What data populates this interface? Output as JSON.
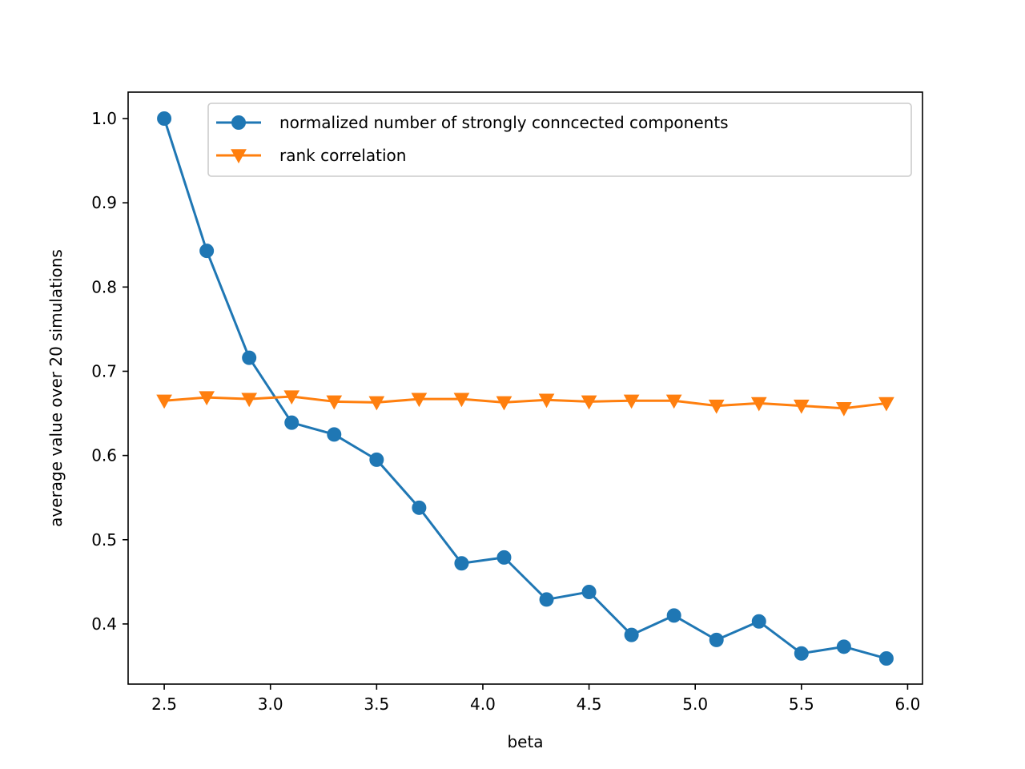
{
  "chart_data": {
    "type": "line",
    "title": "",
    "xlabel": "beta",
    "ylabel": "average value over 20 simulations",
    "xlim": [
      2.33,
      6.07
    ],
    "ylim": [
      0.3286,
      1.0314
    ],
    "x_ticks": [
      "2.5",
      "3.0",
      "3.5",
      "4.0",
      "4.5",
      "5.0",
      "5.5",
      "6.0"
    ],
    "y_ticks": [
      "0.4",
      "0.5",
      "0.6",
      "0.7",
      "0.8",
      "0.9",
      "1.0"
    ],
    "grid": false,
    "legend_position": "upper right",
    "x": [
      2.5,
      2.7,
      2.9,
      3.1,
      3.3,
      3.5,
      3.7,
      3.9,
      4.1,
      4.3,
      4.5,
      4.7,
      4.9,
      5.1,
      5.3,
      5.5,
      5.7,
      5.9
    ],
    "series": [
      {
        "name": "normalized number of strongly conncected components",
        "color": "#1f77b4",
        "marker": "circle",
        "values": [
          1.0,
          0.843,
          0.716,
          0.639,
          0.625,
          0.595,
          0.538,
          0.472,
          0.479,
          0.429,
          0.438,
          0.387,
          0.41,
          0.381,
          0.403,
          0.365,
          0.373,
          0.359
        ]
      },
      {
        "name": "rank correlation",
        "color": "#ff7f0e",
        "marker": "triangle-down",
        "values": [
          0.665,
          0.669,
          0.667,
          0.67,
          0.664,
          0.663,
          0.667,
          0.667,
          0.663,
          0.666,
          0.664,
          0.665,
          0.665,
          0.659,
          0.662,
          0.659,
          0.656,
          0.662
        ]
      }
    ]
  }
}
